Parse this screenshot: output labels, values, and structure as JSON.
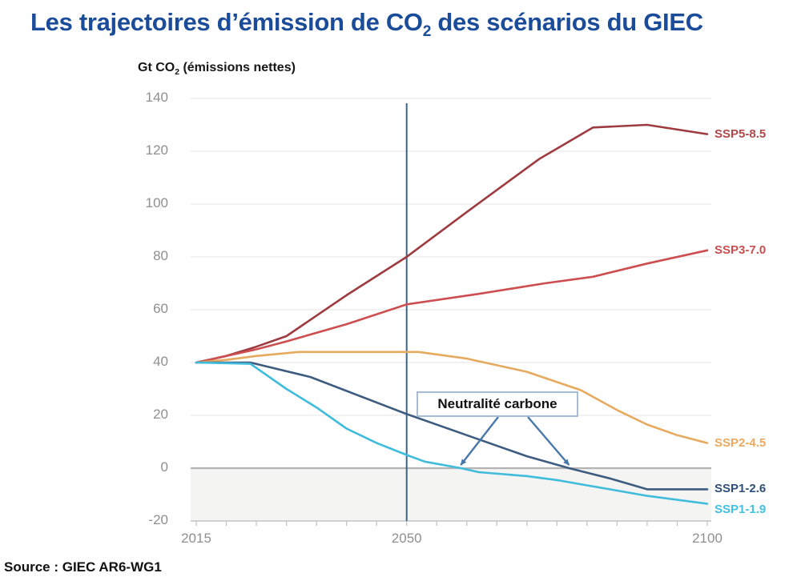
{
  "title": {
    "pre": "Les trajectoires d’émission de CO",
    "sub": "2",
    "post": " des scénarios du GIEC"
  },
  "y_axis_unit": {
    "pre": "Gt CO",
    "sub": "2",
    "post": " (émissions nettes)"
  },
  "annotation": {
    "label": "Neutralité carbone"
  },
  "source": "Source : GIEC AR6-WG1",
  "colors": {
    "title": "#1b4c9a",
    "axis_text": "#8f8f8f",
    "gridline": "#ebebeb",
    "zero_line": "#b3b3b3",
    "axis_line": "#c4c4c4",
    "below_zero_fill": "#f4f4f2",
    "vertical_line": "#3c648c",
    "arrow": "#4878aa",
    "annotation_border": "#a6bcd4"
  },
  "chart_data": {
    "type": "line",
    "title": "Les trajectoires d'émission de CO2 des scénarios du GIEC",
    "xlabel": "",
    "ylabel": "Gt CO2 (émissions nettes)",
    "xlim": [
      2015,
      2100
    ],
    "ylim": [
      -20,
      140
    ],
    "x_ticks": [
      2015,
      2050,
      2100
    ],
    "minor_x_tick_step_years": 5,
    "y_ticks": [
      -20,
      0,
      20,
      40,
      60,
      80,
      100,
      120,
      140
    ],
    "grid": "horizontal",
    "zero_line_emphasized": true,
    "shaded_region": "below zero (net-negative emissions)",
    "vertical_marker_year": 2050,
    "legend_position": "right-of-line-ends",
    "annotations": [
      {
        "text": "Neutralité carbone",
        "arrow_targets": [
          {
            "series": "SSP1-1.9",
            "year": 2059,
            "value": 0
          },
          {
            "series": "SSP1-2.6",
            "year": 2077,
            "value": 0
          }
        ]
      }
    ],
    "series": [
      {
        "name": "SSP5-8.5",
        "color": "#9e3b40",
        "label_color": "#b0484a",
        "label_dy": 0,
        "points": [
          [
            2015,
            40
          ],
          [
            2020,
            42.5
          ],
          [
            2025,
            46
          ],
          [
            2030,
            50
          ],
          [
            2040,
            65.5
          ],
          [
            2050,
            80
          ],
          [
            2060,
            97
          ],
          [
            2072,
            117
          ],
          [
            2081,
            129
          ],
          [
            2090,
            130
          ],
          [
            2100,
            126.5
          ]
        ]
      },
      {
        "name": "SSP3-7.0",
        "color": "#cc4e50",
        "label_color": "#cc4e50",
        "label_dy": 0,
        "points": [
          [
            2015,
            40
          ],
          [
            2020,
            42.5
          ],
          [
            2025,
            45
          ],
          [
            2030,
            48
          ],
          [
            2040,
            54.5
          ],
          [
            2050,
            62
          ],
          [
            2062,
            66
          ],
          [
            2073,
            70
          ],
          [
            2081,
            72.5
          ],
          [
            2090,
            77.5
          ],
          [
            2100,
            82.5
          ]
        ]
      },
      {
        "name": "SSP2-4.5",
        "color": "#e6aa5f",
        "label_color": "#eda95f",
        "label_dy": 0,
        "points": [
          [
            2015,
            40
          ],
          [
            2020,
            41
          ],
          [
            2025,
            42.5
          ],
          [
            2032,
            44
          ],
          [
            2052,
            44
          ],
          [
            2060,
            41.5
          ],
          [
            2070,
            36.5
          ],
          [
            2079,
            29.5
          ],
          [
            2085,
            22
          ],
          [
            2090,
            16.5
          ],
          [
            2095,
            12.5
          ],
          [
            2100,
            9.5
          ]
        ]
      },
      {
        "name": "SSP1-2.6",
        "color": "#3e5c80",
        "label_color": "#2f4f7a",
        "label_dy": 0,
        "points": [
          [
            2015,
            40
          ],
          [
            2024,
            40
          ],
          [
            2034,
            34.5
          ],
          [
            2050,
            20.5
          ],
          [
            2060,
            12.5
          ],
          [
            2070,
            4.5
          ],
          [
            2077,
            0
          ],
          [
            2084,
            -4
          ],
          [
            2090,
            -8
          ],
          [
            2100,
            -8
          ]
        ]
      },
      {
        "name": "SSP1-1.9",
        "color": "#3fbcdc",
        "label_color": "#3fc1e3",
        "label_dy": 7,
        "points": [
          [
            2015,
            40
          ],
          [
            2024,
            39.5
          ],
          [
            2030,
            30
          ],
          [
            2035,
            23
          ],
          [
            2040,
            15
          ],
          [
            2045,
            9.5
          ],
          [
            2050,
            5
          ],
          [
            2053,
            2.5
          ],
          [
            2059,
            0
          ],
          [
            2062,
            -1.5
          ],
          [
            2070,
            -3
          ],
          [
            2075,
            -4.5
          ],
          [
            2080,
            -6.5
          ],
          [
            2085,
            -8.5
          ],
          [
            2090,
            -10.5
          ],
          [
            2100,
            -13.5
          ]
        ]
      }
    ]
  }
}
